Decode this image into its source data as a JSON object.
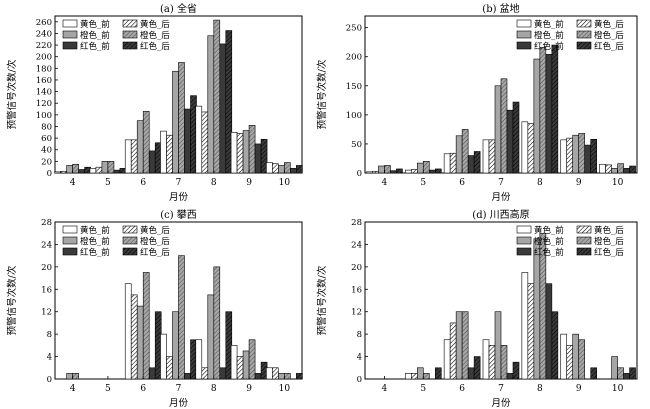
{
  "figure": {
    "xlabel": "月份",
    "ylabel": "预警信号次数/次"
  },
  "legend": {
    "entries": [
      "黄色_前",
      "黄色_后",
      "橙色_前",
      "橙色_后",
      "红色_前",
      "红色_后"
    ]
  },
  "chart_data": [
    {
      "type": "bar",
      "title": "(a) 全省",
      "xlabel": "月份",
      "ylabel": "预警信号次数/次",
      "categories": [
        "4",
        "5",
        "6",
        "7",
        "8",
        "9",
        "10"
      ],
      "ylim": [
        0,
        270
      ],
      "yticks": [
        0,
        20,
        40,
        60,
        80,
        100,
        120,
        140,
        160,
        180,
        200,
        220,
        240,
        260
      ],
      "legend_position": "top-left",
      "series": [
        {
          "name": "黄色_前",
          "color": "#ffffff",
          "hatch": false,
          "values": [
            2,
            8,
            57,
            72,
            115,
            70,
            18
          ]
        },
        {
          "name": "黄色_后",
          "color": "#ffffff",
          "hatch": true,
          "values": [
            3,
            10,
            57,
            65,
            105,
            68,
            16
          ]
        },
        {
          "name": "橙色_前",
          "color": "#a6a6a6",
          "hatch": false,
          "values": [
            13,
            20,
            90,
            175,
            236,
            73,
            13
          ]
        },
        {
          "name": "橙色_后",
          "color": "#a6a6a6",
          "hatch": true,
          "values": [
            15,
            20,
            106,
            190,
            263,
            82,
            18
          ]
        },
        {
          "name": "红色_前",
          "color": "#3a3a3a",
          "hatch": false,
          "values": [
            6,
            5,
            38,
            110,
            222,
            50,
            8
          ]
        },
        {
          "name": "红色_后",
          "color": "#3a3a3a",
          "hatch": true,
          "values": [
            10,
            8,
            52,
            133,
            245,
            58,
            13
          ]
        }
      ]
    },
    {
      "type": "bar",
      "title": "(b) 盆地",
      "xlabel": "月份",
      "ylabel": "预警信号次数/次",
      "categories": [
        "4",
        "5",
        "6",
        "7",
        "8",
        "9",
        "10"
      ],
      "ylim": [
        0,
        270
      ],
      "yticks": [
        0,
        50,
        100,
        150,
        200,
        250
      ],
      "legend_position": "top-right",
      "series": [
        {
          "name": "黄色_前",
          "color": "#ffffff",
          "hatch": false,
          "values": [
            2,
            5,
            33,
            57,
            88,
            57,
            15
          ]
        },
        {
          "name": "黄色_后",
          "color": "#ffffff",
          "hatch": true,
          "values": [
            3,
            6,
            34,
            57,
            85,
            60,
            14
          ]
        },
        {
          "name": "橙色_前",
          "color": "#a6a6a6",
          "hatch": false,
          "values": [
            12,
            17,
            64,
            150,
            196,
            65,
            8
          ]
        },
        {
          "name": "橙色_后",
          "color": "#a6a6a6",
          "hatch": true,
          "values": [
            13,
            20,
            75,
            162,
            216,
            68,
            16
          ]
        },
        {
          "name": "红色_前",
          "color": "#3a3a3a",
          "hatch": false,
          "values": [
            4,
            5,
            30,
            108,
            204,
            48,
            8
          ]
        },
        {
          "name": "红色_后",
          "color": "#3a3a3a",
          "hatch": true,
          "values": [
            7,
            7,
            37,
            122,
            220,
            58,
            12
          ]
        }
      ]
    },
    {
      "type": "bar",
      "title": "(c) 攀西",
      "xlabel": "月份",
      "ylabel": "预警信号次数/次",
      "categories": [
        "4",
        "5",
        "6",
        "7",
        "8",
        "9",
        "10"
      ],
      "ylim": [
        0,
        28
      ],
      "yticks": [
        0,
        4,
        8,
        12,
        16,
        20,
        24,
        28
      ],
      "legend_position": "top-left",
      "series": [
        {
          "name": "黄色_前",
          "color": "#ffffff",
          "hatch": false,
          "values": [
            0,
            0,
            17,
            8,
            7,
            6,
            2
          ]
        },
        {
          "name": "黄色_后",
          "color": "#ffffff",
          "hatch": true,
          "values": [
            0,
            0,
            15,
            4,
            2,
            4,
            2
          ]
        },
        {
          "name": "橙色_前",
          "color": "#a6a6a6",
          "hatch": false,
          "values": [
            1,
            0,
            13,
            12,
            15,
            5,
            1
          ]
        },
        {
          "name": "橙色_后",
          "color": "#a6a6a6",
          "hatch": true,
          "values": [
            1,
            0,
            19,
            22,
            20,
            7,
            1
          ]
        },
        {
          "name": "红色_前",
          "color": "#3a3a3a",
          "hatch": false,
          "values": [
            0,
            0,
            2,
            1,
            2,
            1,
            0
          ]
        },
        {
          "name": "红色_后",
          "color": "#3a3a3a",
          "hatch": true,
          "values": [
            0,
            0,
            12,
            7,
            12,
            3,
            1
          ]
        }
      ]
    },
    {
      "type": "bar",
      "title": "(d) 川西高原",
      "xlabel": "月份",
      "ylabel": "预警信号次数/次",
      "categories": [
        "4",
        "5",
        "6",
        "7",
        "8",
        "9",
        "10"
      ],
      "ylim": [
        0,
        28
      ],
      "yticks": [
        0,
        4,
        8,
        12,
        16,
        20,
        24,
        28
      ],
      "legend_position": "top-right",
      "series": [
        {
          "name": "黄色_前",
          "color": "#ffffff",
          "hatch": false,
          "values": [
            0,
            1,
            7,
            7,
            19,
            8,
            0
          ]
        },
        {
          "name": "黄色_后",
          "color": "#ffffff",
          "hatch": true,
          "values": [
            0,
            1,
            10,
            6,
            17,
            6,
            0
          ]
        },
        {
          "name": "橙色_前",
          "color": "#a6a6a6",
          "hatch": false,
          "values": [
            0,
            2,
            12,
            12,
            25,
            8,
            4
          ]
        },
        {
          "name": "橙色_后",
          "color": "#a6a6a6",
          "hatch": true,
          "values": [
            0,
            1,
            12,
            6,
            26,
            7,
            2
          ]
        },
        {
          "name": "红色_前",
          "color": "#3a3a3a",
          "hatch": false,
          "values": [
            0,
            0,
            2,
            1,
            17,
            0,
            1
          ]
        },
        {
          "name": "红色_后",
          "color": "#3a3a3a",
          "hatch": true,
          "values": [
            0,
            2,
            4,
            3,
            12,
            2,
            2
          ]
        }
      ]
    }
  ]
}
